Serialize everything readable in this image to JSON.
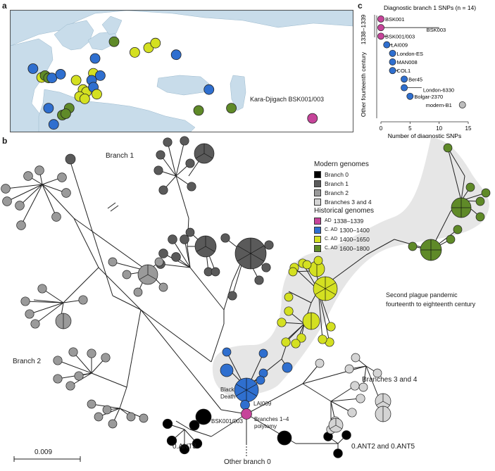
{
  "panel_a": {
    "letter": "a",
    "annotation": "Kara-Djigach BSK001/003",
    "colors": {
      "water": "#c8dcea",
      "land": "#ffffff",
      "coast": "#9ab8cc"
    },
    "points": [
      {
        "group": "c1300",
        "lon": 12.5,
        "lat": 55.7
      },
      {
        "group": "c1600",
        "lon": 18.0,
        "lat": 59.3
      },
      {
        "group": "c1300",
        "lon": 36.0,
        "lat": 56.5
      },
      {
        "group": "c1400",
        "lon": 24.0,
        "lat": 57.0
      },
      {
        "group": "c1400",
        "lon": 28.0,
        "lat": 58.0
      },
      {
        "group": "c1400",
        "lon": 30.0,
        "lat": 59.0
      },
      {
        "group": "c1400",
        "lon": 12.0,
        "lat": 52.5
      },
      {
        "group": "c1300",
        "lon": 11.5,
        "lat": 51.0
      },
      {
        "group": "c1300",
        "lon": 14.0,
        "lat": 52.0
      },
      {
        "group": "c1400",
        "lon": -3.0,
        "lat": 51.6
      },
      {
        "group": "c1600",
        "lon": -2.0,
        "lat": 52.0
      },
      {
        "group": "c1600",
        "lon": -1.0,
        "lat": 51.5
      },
      {
        "group": "c1300",
        "lon": 0.0,
        "lat": 51.5
      },
      {
        "group": "c1300",
        "lon": 2.5,
        "lat": 52.3
      },
      {
        "group": "c1400",
        "lon": 7.0,
        "lat": 51.0
      },
      {
        "group": "c1300",
        "lon": -5.5,
        "lat": 53.5
      },
      {
        "group": "c1400",
        "lon": 9.0,
        "lat": 49.0
      },
      {
        "group": "c1400",
        "lon": 10.0,
        "lat": 48.5
      },
      {
        "group": "c1300",
        "lon": 12.0,
        "lat": 49.5
      },
      {
        "group": "c1400",
        "lon": 13.0,
        "lat": 48.0
      },
      {
        "group": "c1400",
        "lon": 8.0,
        "lat": 47.5
      },
      {
        "group": "c1400",
        "lon": 9.5,
        "lat": 47.0
      },
      {
        "group": "c1600",
        "lon": 5.0,
        "lat": 45.0
      },
      {
        "group": "c1300",
        "lon": -1.0,
        "lat": 45.0
      },
      {
        "group": "c1600",
        "lon": 3.0,
        "lat": 43.5
      },
      {
        "group": "c1600",
        "lon": 4.0,
        "lat": 43.8
      },
      {
        "group": "c1300",
        "lon": 0.5,
        "lat": 41.5
      },
      {
        "group": "c1300",
        "lon": 45.5,
        "lat": 49.0
      },
      {
        "group": "c1600",
        "lon": 42.5,
        "lat": 44.5
      },
      {
        "group": "c1600",
        "lon": 52.0,
        "lat": 45.0
      },
      {
        "group": "ad1338",
        "lon": 75.5,
        "lat": 42.8
      }
    ]
  },
  "panel_c": {
    "letter": "c",
    "title": "Diagnostic branch 1 SNPs (n = 14)",
    "xlabel": "Number of diagnostic SNPs",
    "ylabel": "Other fourteenth century",
    "bracket_label": "1338–1339",
    "ticks": [
      "0",
      "5",
      "10",
      "15"
    ],
    "xlim": [
      0,
      15
    ]
  },
  "chart_data": {
    "type": "scatter",
    "title": "Diagnostic branch 1 SNPs (n = 14)",
    "xlabel": "Number of diagnostic SNPs",
    "ylabel": "Other fourteenth century",
    "xlim": [
      0,
      15
    ],
    "points": [
      {
        "label": "BSK001",
        "value": 0,
        "lo": 0,
        "hi": 0,
        "group": "ad1338"
      },
      {
        "label": "BSK003",
        "value": 0,
        "lo": 0,
        "hi": 10,
        "group": "ad1338"
      },
      {
        "label": "BSK001/003",
        "value": 0,
        "lo": 0,
        "hi": 1,
        "group": "ad1338"
      },
      {
        "label": "LAI009",
        "value": 1,
        "lo": 1,
        "hi": 2,
        "group": "c1300"
      },
      {
        "label": "London-ES",
        "value": 2,
        "lo": 2,
        "hi": 2,
        "group": "c1300"
      },
      {
        "label": "MAN008",
        "value": 2,
        "lo": 2,
        "hi": 2,
        "group": "c1300"
      },
      {
        "label": "COL1",
        "value": 2,
        "lo": 2,
        "hi": 3,
        "group": "c1300"
      },
      {
        "label": "Ber45",
        "value": 4,
        "lo": 4,
        "hi": 4,
        "group": "c1300"
      },
      {
        "label": "London-6330",
        "value": 4,
        "lo": 4,
        "hi": 7,
        "group": "c1300"
      },
      {
        "label": "Bolgar-2370",
        "value": 5,
        "lo": 5,
        "hi": 5,
        "group": "c1300"
      },
      {
        "label": "modern-B1",
        "value": 14,
        "lo": 14,
        "hi": 14,
        "group": "modern"
      }
    ]
  },
  "panel_b": {
    "letter": "b",
    "labels": {
      "branch1": "Branch 1",
      "branch2": "Branch 2",
      "branch34": "Branches 3 and 4",
      "second_pandemic": [
        "Second plague pandemic",
        "fourteenth to eighteenth century"
      ],
      "black_death": [
        "Black",
        "Death"
      ],
      "lai009": "LAI009",
      "bsk": "BSK001/003",
      "polytomy": [
        "Branches 1–4",
        "polytomy"
      ],
      "ant3": "0.ANT3",
      "ant25": "0.ANT2 and 0.ANT5",
      "other_branch0": "Other branch 0",
      "scale": "0.009"
    },
    "legend": {
      "modern_title": "Modern genomes",
      "modern": [
        {
          "label": "Branch 0",
          "color": "#000000"
        },
        {
          "label": "Branch 1",
          "color": "#5a5a5a"
        },
        {
          "label": "Branch 2",
          "color": "#9a9a9a"
        },
        {
          "label": "Branches 3 and 4",
          "color": "#d4d4d4"
        }
      ],
      "historical_title": "Historical genomes",
      "historical": [
        {
          "prefix": "AD",
          "label": "1338–1339",
          "color": "#c6449a"
        },
        {
          "prefix": "C. AD",
          "label": "1300–1400",
          "color": "#2f6fcf"
        },
        {
          "prefix": "C. AD",
          "label": "1400–1650",
          "color": "#d4e021"
        },
        {
          "prefix": "C. AD",
          "label": "1600–1800",
          "color": "#5f8a28"
        }
      ]
    },
    "colors": {
      "branch0": "#000000",
      "branch1": "#5a5a5a",
      "branch2": "#9a9a9a",
      "branch34": "#d4d4d4",
      "ad1338": "#c6449a",
      "c1300": "#2f6fcf",
      "c1400": "#d4e021",
      "c1600": "#5f8a28",
      "modern": "#bdbdbd",
      "hull": "#e6e6e6",
      "edge": "#222222"
    }
  }
}
